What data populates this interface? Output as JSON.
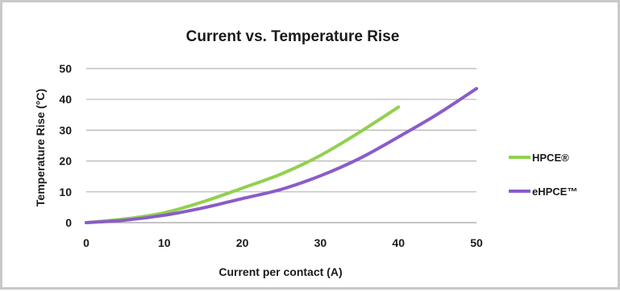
{
  "chart_data": {
    "type": "line",
    "title": "Current vs. Temperature Rise",
    "xlabel": "Current per contact (A)",
    "ylabel": "Temperature Rise (°C)",
    "xlim": [
      0,
      50
    ],
    "ylim": [
      0,
      50
    ],
    "xticks": [
      "0",
      "10",
      "20",
      "30",
      "40",
      "50"
    ],
    "yticks": [
      "0",
      "10",
      "20",
      "30",
      "40",
      "50"
    ],
    "grid": "horizontal",
    "legend_position": "right",
    "series": [
      {
        "name": "HPCE®",
        "color": "#92d050",
        "x": [
          0,
          5,
          10,
          15,
          20,
          25,
          30,
          35,
          40
        ],
        "y": [
          0,
          1.2,
          3.2,
          6.8,
          11.2,
          15.8,
          21.8,
          29.3,
          37.5
        ]
      },
      {
        "name": "eHPCE™",
        "color": "#8a5cc8",
        "x": [
          0,
          5,
          10,
          15,
          20,
          25,
          30,
          35,
          40,
          45,
          50
        ],
        "y": [
          0,
          0.8,
          2.4,
          4.8,
          7.8,
          10.8,
          15.2,
          20.8,
          27.8,
          35.2,
          43.5
        ]
      }
    ]
  }
}
